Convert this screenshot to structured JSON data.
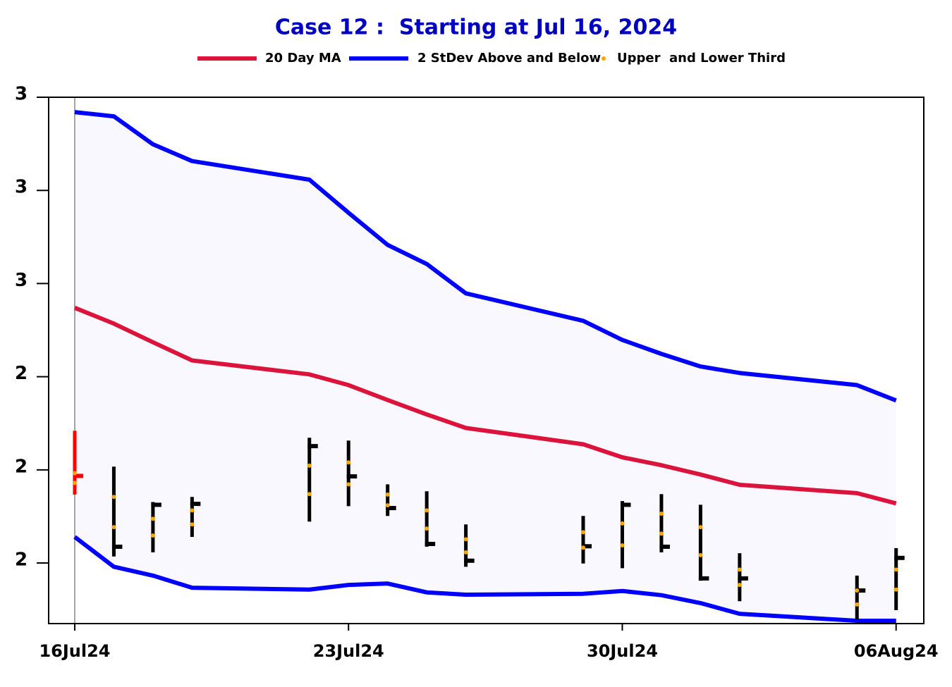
{
  "chart_data": {
    "type": "ohlc_band",
    "title": "Case 12 :  Starting at Jul 16, 2024",
    "x": [
      "2024-07-16",
      "2024-07-17",
      "2024-07-18",
      "2024-07-19",
      "2024-07-22",
      "2024-07-23",
      "2024-07-24",
      "2024-07-25",
      "2024-07-26",
      "2024-07-29",
      "2024-07-30",
      "2024-07-31",
      "2024-08-01",
      "2024-08-02",
      "2024-08-05",
      "2024-08-06"
    ],
    "xlim": [
      "2024-07-15T08:00:00Z",
      "2024-08-06T17:00:00Z"
    ],
    "xticks": [
      {
        "value": "2024-07-16",
        "label": "16Jul24"
      },
      {
        "value": "2024-07-23",
        "label": "23Jul24"
      },
      {
        "value": "2024-07-30",
        "label": "30Jul24"
      },
      {
        "value": "2024-08-06",
        "label": "06Aug24"
      }
    ],
    "ylim": [
      1.77,
      2.9
    ],
    "yticks": [
      {
        "value": 2.9,
        "label": "3"
      },
      {
        "value": 2.7,
        "label": "3"
      },
      {
        "value": 2.5,
        "label": "3"
      },
      {
        "value": 2.3,
        "label": "2"
      },
      {
        "value": 2.1,
        "label": "2"
      },
      {
        "value": 1.9,
        "label": "2"
      }
    ],
    "series": [
      {
        "name": "20 Day MA",
        "color": "#dc143c",
        "values": [
          2.448,
          2.414,
          2.374,
          2.335,
          2.305,
          2.282,
          2.25,
          2.219,
          2.19,
          2.155,
          2.127,
          2.11,
          2.09,
          2.068,
          2.05,
          2.028
        ]
      },
      {
        "name": "2 StDev Above and Below",
        "color": "#0000ff",
        "upper": [
          2.868,
          2.859,
          2.799,
          2.763,
          2.723,
          2.652,
          2.583,
          2.542,
          2.479,
          2.42,
          2.379,
          2.349,
          2.322,
          2.308,
          2.282,
          2.249
        ],
        "lower": [
          1.956,
          1.892,
          1.873,
          1.847,
          1.843,
          1.853,
          1.856,
          1.837,
          1.832,
          1.834,
          1.84,
          1.831,
          1.814,
          1.791,
          1.776,
          1.776
        ]
      },
      {
        "name": "Upper  and Lower Third",
        "color": "#ffa500",
        "upper": [
          2.093,
          2.042,
          1.995,
          2.013,
          2.109,
          2.116,
          2.047,
          2.013,
          1.951,
          1.966,
          1.985,
          2.006,
          1.977,
          1.886,
          1.841,
          1.886
        ],
        "lower": [
          2.072,
          1.977,
          1.959,
          1.983,
          2.048,
          2.069,
          2.024,
          1.974,
          1.923,
          1.933,
          1.938,
          1.963,
          1.917,
          1.853,
          1.811,
          1.843
        ]
      }
    ],
    "ohlc": {
      "high": [
        2.184,
        2.107,
        2.031,
        2.042,
        2.169,
        2.163,
        2.069,
        2.054,
        1.983,
        2.001,
        2.033,
        2.048,
        2.025,
        1.921,
        1.873,
        1.932
      ],
      "low": [
        2.047,
        1.914,
        1.923,
        1.956,
        1.989,
        2.022,
        2.001,
        1.935,
        1.892,
        1.899,
        1.889,
        1.923,
        1.862,
        1.818,
        1.779,
        1.799
      ],
      "close": [
        2.087,
        1.935,
        2.025,
        2.027,
        2.151,
        2.086,
        2.018,
        1.941,
        1.905,
        1.936,
        2.025,
        1.935,
        1.867,
        1.867,
        1.841,
        1.911
      ],
      "colors": [
        "#ff0000",
        "#000000",
        "#000000",
        "#000000",
        "#000000",
        "#000000",
        "#000000",
        "#000000",
        "#000000",
        "#000000",
        "#000000",
        "#000000",
        "#000000",
        "#000000",
        "#000000",
        "#000000"
      ]
    },
    "band_fill": "#f8f8fe"
  }
}
